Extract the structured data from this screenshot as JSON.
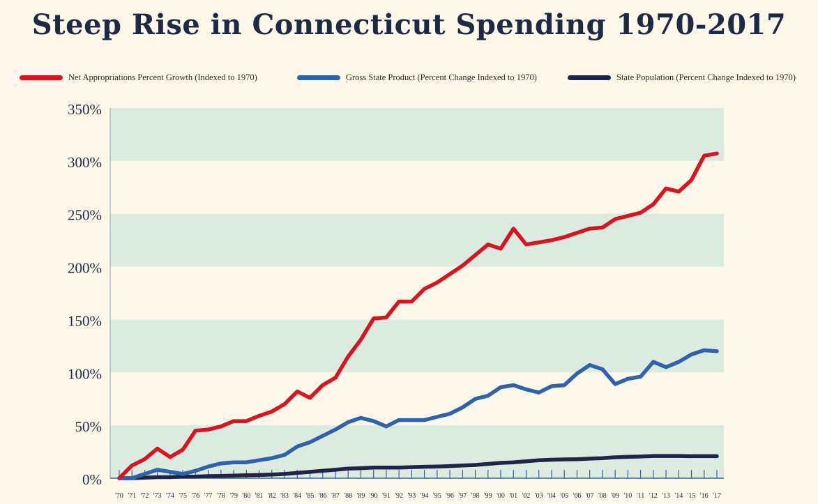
{
  "chart_data": {
    "type": "line",
    "title": "Steep Rise in Connecticut Spending 1970-2017",
    "xlabel": "",
    "ylabel": "",
    "ylim": [
      0,
      350
    ],
    "yticks": [
      "0%",
      "50%",
      "100%",
      "150%",
      "200%",
      "250%",
      "300%",
      "350%"
    ],
    "ytick_values": [
      0,
      50,
      100,
      150,
      200,
      250,
      300,
      350
    ],
    "legend_position": "top",
    "categories": [
      "'70",
      "'71",
      "'72",
      "'73",
      "'74",
      "'75",
      "'76",
      "'77",
      "'78",
      "'79",
      "'80",
      "'81",
      "'82",
      "'83",
      "'84",
      "'85",
      "'86",
      "'87",
      "'88",
      "'89",
      "'90",
      "'91",
      "'92",
      "'93",
      "'94",
      "'95",
      "'96",
      "'97",
      "'98",
      "'99",
      "'00",
      "'01",
      "'02",
      "'03",
      "'04",
      "'05",
      "'06",
      "'07",
      "'08",
      "'09",
      "'10",
      "'11",
      "'12",
      "'13",
      "'14",
      "'15",
      "'16",
      "'17"
    ],
    "series": [
      {
        "name": "Net Appropriations Percent Growth (Indexed to 1970)",
        "color": "#d7141f",
        "values": [
          0,
          12,
          18,
          28,
          20,
          27,
          45,
          46,
          49,
          54,
          54,
          59,
          63,
          70,
          82,
          76,
          88,
          95,
          115,
          131,
          151,
          152,
          167,
          167,
          179,
          185,
          193,
          201,
          211,
          221,
          217,
          236,
          221,
          223,
          225,
          228,
          232,
          236,
          237,
          245,
          248,
          251,
          259,
          274,
          271,
          282,
          305,
          307
        ]
      },
      {
        "name": "Gross State Product (Percent Change Indexed to 1970)",
        "color": "#2e62ad",
        "values": [
          0,
          0,
          4,
          8,
          6,
          4,
          7,
          11,
          14,
          15,
          15,
          17,
          19,
          22,
          30,
          34,
          40,
          46,
          53,
          57,
          54,
          49,
          55,
          55,
          55,
          58,
          61,
          67,
          75,
          78,
          86,
          88,
          84,
          81,
          87,
          88,
          99,
          107,
          103,
          89,
          94,
          96,
          110,
          105,
          110,
          117,
          121,
          120
        ]
      },
      {
        "name": "State Population (Percent Change Indexed to 1970)",
        "color": "#1e2548",
        "values": [
          0,
          0,
          0.5,
          1,
          1,
          1.5,
          1.5,
          2,
          2.2,
          2.5,
          2.8,
          3,
          3.5,
          4,
          5,
          6,
          7,
          8,
          9,
          9.5,
          10,
          10,
          10,
          10.5,
          10.8,
          11,
          11.5,
          12,
          12.5,
          13.5,
          14.5,
          15,
          16,
          17,
          17.5,
          17.8,
          18,
          18.5,
          19,
          19.8,
          20.2,
          20.5,
          21,
          21,
          21,
          20.8,
          20.8,
          20.8
        ]
      }
    ]
  }
}
